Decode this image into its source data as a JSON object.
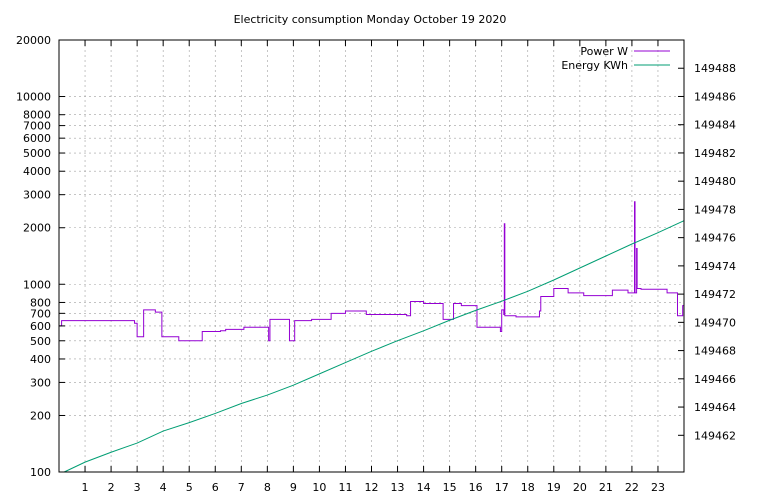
{
  "chart_data": {
    "type": "line",
    "title": "Electricity consumption Monday October 19 2020",
    "xlabel": "",
    "ylabel": "",
    "y2label": "",
    "grid": true,
    "legend_position": "top-right",
    "xlim": [
      0,
      24
    ],
    "x_ticks": [
      1,
      2,
      3,
      4,
      5,
      6,
      7,
      8,
      9,
      10,
      11,
      12,
      13,
      14,
      15,
      16,
      17,
      18,
      19,
      20,
      21,
      22,
      23
    ],
    "y_scale": "log",
    "ylim": [
      100,
      20000
    ],
    "y_ticks": [
      100,
      200,
      300,
      400,
      500,
      600,
      700,
      800,
      1000,
      2000,
      3000,
      4000,
      5000,
      6000,
      7000,
      8000,
      10000,
      20000
    ],
    "y2_scale": "linear",
    "y2lim": [
      149459.4,
      149490
    ],
    "y2_ticks": [
      149462,
      149464,
      149466,
      149468,
      149470,
      149472,
      149474,
      149476,
      149478,
      149480,
      149482,
      149484,
      149486,
      149488
    ],
    "series": [
      {
        "name": "Power W",
        "axis": "y",
        "color": "#9400d3",
        "style": "steps",
        "points": [
          [
            0.0,
            600
          ],
          [
            0.1,
            640
          ],
          [
            2.0,
            640
          ],
          [
            2.9,
            620
          ],
          [
            3.0,
            525
          ],
          [
            3.2,
            525
          ],
          [
            3.25,
            730
          ],
          [
            3.7,
            710
          ],
          [
            3.9,
            710
          ],
          [
            3.95,
            525
          ],
          [
            4.6,
            500
          ],
          [
            5.4,
            500
          ],
          [
            5.5,
            560
          ],
          [
            6.2,
            565
          ],
          [
            6.4,
            575
          ],
          [
            7.0,
            575
          ],
          [
            7.1,
            590
          ],
          [
            8.0,
            590
          ],
          [
            8.05,
            500
          ],
          [
            8.1,
            650
          ],
          [
            8.8,
            650
          ],
          [
            8.85,
            500
          ],
          [
            9.0,
            500
          ],
          [
            9.05,
            640
          ],
          [
            9.7,
            650
          ],
          [
            10.4,
            650
          ],
          [
            10.45,
            700
          ],
          [
            10.9,
            700
          ],
          [
            11.0,
            720
          ],
          [
            11.7,
            720
          ],
          [
            11.8,
            690
          ],
          [
            13.3,
            690
          ],
          [
            13.35,
            680
          ],
          [
            13.45,
            680
          ],
          [
            13.5,
            810
          ],
          [
            13.9,
            810
          ],
          [
            14.0,
            790
          ],
          [
            14.7,
            790
          ],
          [
            14.75,
            650
          ],
          [
            15.1,
            650
          ],
          [
            15.15,
            790
          ],
          [
            15.4,
            790
          ],
          [
            15.45,
            770
          ],
          [
            16.0,
            770
          ],
          [
            16.05,
            590
          ],
          [
            16.9,
            590
          ],
          [
            16.95,
            560
          ],
          [
            17.0,
            730
          ],
          [
            17.08,
            690
          ],
          [
            17.1,
            2100
          ],
          [
            17.12,
            680
          ],
          [
            17.5,
            680
          ],
          [
            17.55,
            670
          ],
          [
            18.4,
            670
          ],
          [
            18.45,
            720
          ],
          [
            18.5,
            860
          ],
          [
            18.9,
            860
          ],
          [
            19.0,
            950
          ],
          [
            19.5,
            950
          ],
          [
            19.55,
            900
          ],
          [
            20.1,
            900
          ],
          [
            20.15,
            870
          ],
          [
            21.2,
            870
          ],
          [
            21.25,
            930
          ],
          [
            21.8,
            930
          ],
          [
            21.85,
            900
          ],
          [
            22.05,
            900
          ],
          [
            22.1,
            2750
          ],
          [
            22.12,
            900
          ],
          [
            22.18,
            1550
          ],
          [
            22.2,
            950
          ],
          [
            22.3,
            950
          ],
          [
            22.35,
            940
          ],
          [
            23.3,
            940
          ],
          [
            23.35,
            900
          ],
          [
            23.7,
            900
          ],
          [
            23.75,
            680
          ],
          [
            23.9,
            680
          ],
          [
            23.95,
            770
          ],
          [
            24.0,
            770
          ]
        ]
      },
      {
        "name": "Energy KWh",
        "axis": "y2",
        "color": "#009e73",
        "style": "lines",
        "points": [
          [
            0.2,
            149459.4
          ],
          [
            1.0,
            149460.1
          ],
          [
            2.0,
            149460.8
          ],
          [
            3.0,
            149461.45
          ],
          [
            4.0,
            149462.3
          ],
          [
            5.0,
            149462.9
          ],
          [
            6.0,
            149463.55
          ],
          [
            7.0,
            149464.25
          ],
          [
            8.0,
            149464.85
          ],
          [
            9.0,
            149465.55
          ],
          [
            10.0,
            149466.35
          ],
          [
            11.0,
            149467.15
          ],
          [
            12.0,
            149467.95
          ],
          [
            13.0,
            149468.7
          ],
          [
            14.0,
            149469.4
          ],
          [
            15.0,
            149470.15
          ],
          [
            16.0,
            149470.85
          ],
          [
            17.0,
            149471.5
          ],
          [
            18.0,
            149472.2
          ],
          [
            19.0,
            149473.0
          ],
          [
            20.0,
            149473.85
          ],
          [
            21.0,
            149474.7
          ],
          [
            22.0,
            149475.55
          ],
          [
            23.0,
            149476.35
          ],
          [
            24.0,
            149477.2
          ]
        ]
      }
    ]
  }
}
